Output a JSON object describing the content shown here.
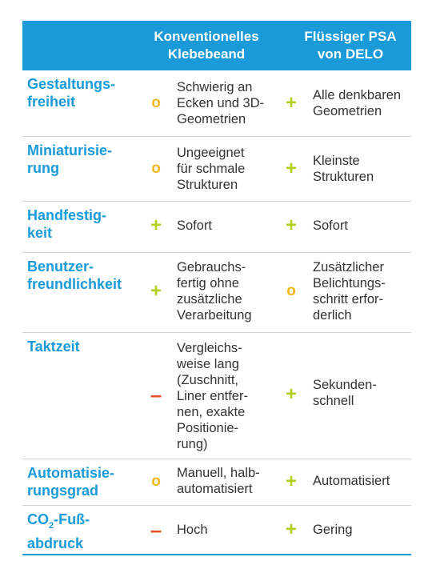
{
  "colors": {
    "accent": "#1a9ad9",
    "plus": "#b3cf22",
    "neutral": "#f2b71d",
    "minus": "#e5532a"
  },
  "header": {
    "col1": "Konventionelles\nKlebebeand",
    "col2": "Flüssiger PSA\nvon DELO"
  },
  "rows": [
    {
      "label": "Gestaltungs-\nfreiheit",
      "sym1": "o",
      "text1": "Schwierig an\nEcken und 3D-\nGeometrien",
      "sym2": "+",
      "text2": "Alle denkbaren\nGeometrien"
    },
    {
      "label": "Miniaturisie-\nrung",
      "sym1": "o",
      "text1": "Ungeeignet\nfür schmale\nStrukturen",
      "sym2": "+",
      "text2": "Kleinste\nStrukturen"
    },
    {
      "label": "Handfestig-\nkeit",
      "sym1": "+",
      "text1": "Sofort",
      "sym2": "+",
      "text2": "Sofort"
    },
    {
      "label": "Benutzer-\nfreundlichkeit",
      "sym1": "+",
      "text1": "Gebrauchs-\nfertig ohne\nzusätzliche\nVerarbeitung",
      "sym2": "o",
      "text2": "Zusätzlicher\nBelichtungs-\nschritt erfor-\nderlich"
    },
    {
      "label": "Taktzeit",
      "sym1": "–",
      "text1": "Vergleichs-\nweise lang\n(Zuschnitt,\nLiner entfer-\nnen, exakte\nPositionie-\nrung)",
      "sym2": "+",
      "text2": "Sekunden-\nschnell"
    },
    {
      "label": "Automatisie-\nrungsgrad",
      "sym1": "o",
      "text1": "Manuell, halb-\nautomatisiert",
      "sym2": "+",
      "text2": "Automatisiert"
    },
    {
      "label_pre": "CO",
      "label_sub": "2",
      "label_post": "-Fuß-\nabdruck",
      "sym1": "–",
      "text1": "Hoch",
      "sym2": "+",
      "text2": "Gering"
    }
  ]
}
